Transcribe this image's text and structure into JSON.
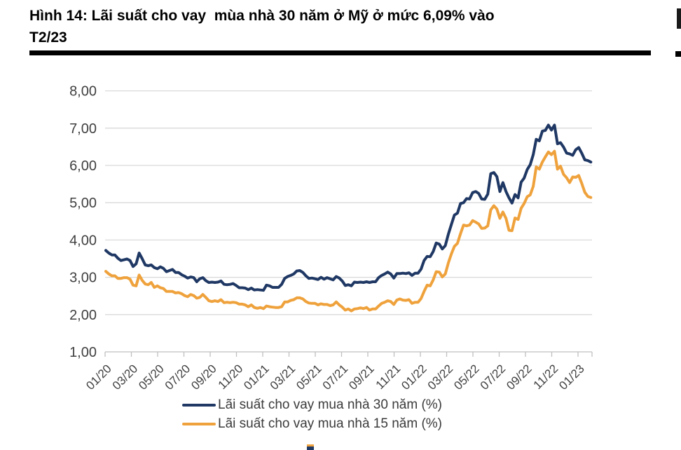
{
  "header": {
    "title": "Hình 14: Lãi suất cho vay  mùa nhà 30 năm ở Mỹ ở mức 6,09% vào\nT2/23"
  },
  "colors": {
    "series_30yr": "#1F3864",
    "series_15yr": "#EFA23C",
    "gridline": "#D9D9D9",
    "axis": "#BFBFBF",
    "axis_text": "#404040",
    "title_text": "#000000"
  },
  "chart_data": {
    "type": "line",
    "title": "Hình 14: Lãi suất cho vay mùa nhà 30 năm ở Mỹ ở mức 6,09% vào T2/23",
    "xlabel": "",
    "ylabel": "",
    "ylim": [
      1,
      8
    ],
    "grid": "horizontal",
    "legend_position": "bottom",
    "x_frequency": "weekly, Jan 2020 - Feb 2023",
    "x_tick_labels": [
      "01/20",
      "03/20",
      "05/20",
      "07/20",
      "09/20",
      "11/20",
      "01/21",
      "03/21",
      "05/21",
      "07/21",
      "09/21",
      "11/21",
      "01/22",
      "03/22",
      "05/22",
      "07/22",
      "09/22",
      "11/22",
      "01/23"
    ],
    "y_ticks": [
      {
        "value": 1,
        "label": "1,00"
      },
      {
        "value": 2,
        "label": "2,00"
      },
      {
        "value": 3,
        "label": "3,00"
      },
      {
        "value": 4,
        "label": "4,00"
      },
      {
        "value": 5,
        "label": "5,00"
      },
      {
        "value": 6,
        "label": "6,00"
      },
      {
        "value": 7,
        "label": "7,00"
      },
      {
        "value": 8,
        "label": "8,00"
      }
    ],
    "series": [
      {
        "name": "Lãi suất cho vay mua nhà 30 năm (%)",
        "color": "#1F3864",
        "last_value": 6.09,
        "values": [
          3.72,
          3.65,
          3.6,
          3.6,
          3.51,
          3.45,
          3.47,
          3.49,
          3.45,
          3.29,
          3.36,
          3.65,
          3.5,
          3.33,
          3.31,
          3.33,
          3.26,
          3.23,
          3.28,
          3.24,
          3.15,
          3.18,
          3.21,
          3.13,
          3.13,
          3.07,
          3.03,
          2.98,
          3.01,
          2.99,
          2.88,
          2.96,
          2.99,
          2.91,
          2.86,
          2.87,
          2.86,
          2.87,
          2.9,
          2.81,
          2.8,
          2.81,
          2.83,
          2.78,
          2.72,
          2.72,
          2.71,
          2.67,
          2.71,
          2.66,
          2.67,
          2.66,
          2.65,
          2.79,
          2.77,
          2.73,
          2.73,
          2.73,
          2.81,
          2.97,
          3.02,
          3.05,
          3.09,
          3.17,
          3.18,
          3.13,
          3.04,
          2.97,
          2.98,
          2.96,
          2.94,
          3.0,
          2.95,
          2.99,
          2.96,
          2.93,
          3.02,
          2.98,
          2.9,
          2.78,
          2.8,
          2.77,
          2.87,
          2.86,
          2.87,
          2.86,
          2.88,
          2.86,
          2.88,
          2.88,
          2.99,
          3.05,
          3.09,
          3.14,
          3.09,
          2.98,
          3.1,
          3.1,
          3.11,
          3.1,
          3.12,
          3.05,
          3.11,
          3.11,
          3.22,
          3.45,
          3.56,
          3.55,
          3.69,
          3.92,
          3.89,
          3.76,
          3.85,
          4.16,
          4.42,
          4.67,
          4.72,
          4.98,
          5.0,
          5.11,
          5.1,
          5.27,
          5.3,
          5.25,
          5.1,
          5.09,
          5.23,
          5.78,
          5.81,
          5.7,
          5.3,
          5.54,
          5.3,
          5.13,
          4.99,
          5.22,
          5.13,
          5.55,
          5.66,
          5.89,
          6.02,
          6.29,
          6.7,
          6.66,
          6.92,
          6.94,
          7.08,
          6.95,
          7.08,
          6.58,
          6.61,
          6.49,
          6.33,
          6.31,
          6.27,
          6.42,
          6.48,
          6.33,
          6.15,
          6.13,
          6.09
        ]
      },
      {
        "name": "Lãi suất cho vay mua nhà 15 năm (%)",
        "color": "#EFA23C",
        "last_value": 5.14,
        "values": [
          3.16,
          3.09,
          3.04,
          3.04,
          2.97,
          2.97,
          2.99,
          2.99,
          2.95,
          2.79,
          2.77,
          3.06,
          2.92,
          2.82,
          2.8,
          2.86,
          2.73,
          2.77,
          2.72,
          2.7,
          2.62,
          2.62,
          2.62,
          2.58,
          2.59,
          2.56,
          2.51,
          2.48,
          2.54,
          2.51,
          2.44,
          2.46,
          2.54,
          2.46,
          2.37,
          2.35,
          2.37,
          2.35,
          2.4,
          2.32,
          2.33,
          2.32,
          2.33,
          2.32,
          2.28,
          2.28,
          2.26,
          2.21,
          2.26,
          2.19,
          2.17,
          2.19,
          2.16,
          2.23,
          2.21,
          2.2,
          2.19,
          2.19,
          2.21,
          2.34,
          2.34,
          2.38,
          2.4,
          2.45,
          2.45,
          2.42,
          2.35,
          2.31,
          2.3,
          2.3,
          2.26,
          2.29,
          2.27,
          2.27,
          2.24,
          2.26,
          2.34,
          2.26,
          2.2,
          2.12,
          2.15,
          2.1,
          2.15,
          2.16,
          2.18,
          2.16,
          2.19,
          2.12,
          2.15,
          2.15,
          2.23,
          2.3,
          2.33,
          2.37,
          2.35,
          2.27,
          2.39,
          2.42,
          2.39,
          2.38,
          2.4,
          2.3,
          2.33,
          2.33,
          2.43,
          2.62,
          2.79,
          2.77,
          2.93,
          3.15,
          3.14,
          3.01,
          3.09,
          3.39,
          3.63,
          3.83,
          3.91,
          4.17,
          4.4,
          4.38,
          4.4,
          4.52,
          4.48,
          4.43,
          4.31,
          4.32,
          4.38,
          4.81,
          4.92,
          4.83,
          4.58,
          4.75,
          4.58,
          4.26,
          4.25,
          4.59,
          4.55,
          4.85,
          4.98,
          5.16,
          5.21,
          5.44,
          5.96,
          5.9,
          6.09,
          6.23,
          6.36,
          6.29,
          6.38,
          5.9,
          5.98,
          5.76,
          5.67,
          5.54,
          5.69,
          5.68,
          5.73,
          5.52,
          5.28,
          5.17,
          5.14
        ]
      }
    ]
  }
}
